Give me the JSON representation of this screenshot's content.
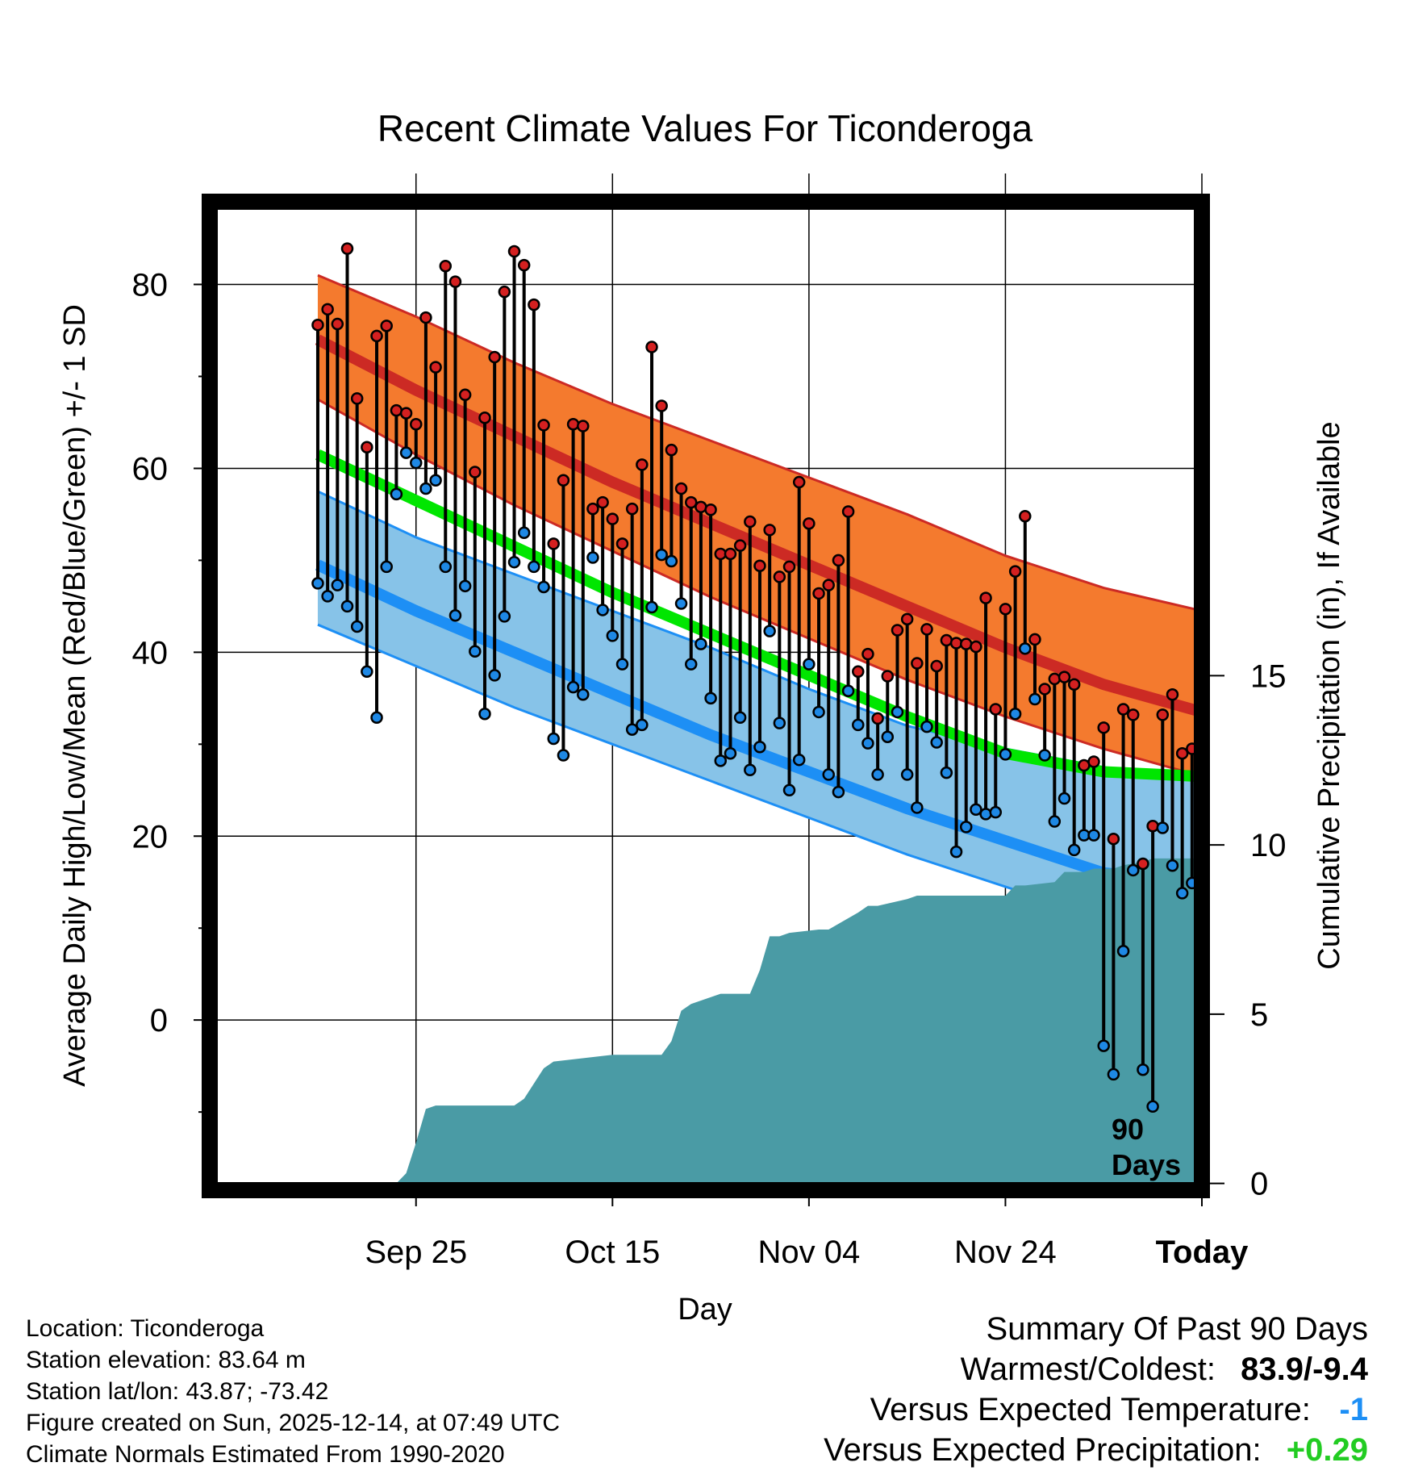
{
  "chart_data": {
    "type": "line",
    "title": "Recent Climate Values For Ticonderoga",
    "xlabel": "Day",
    "ylabel": "Average Daily High/Low/Mean (Red/Blue/Green) +/- 1 SD",
    "y2label": "Cumulative Precipitation (in), If Available",
    "xlim": [
      -11,
      90
    ],
    "ylim": [
      -18.5,
      89
    ],
    "y2lim": [
      -0.2,
      29
    ],
    "x_ticks": [
      {
        "x": 10,
        "label": "Sep 25"
      },
      {
        "x": 30,
        "label": "Oct 15"
      },
      {
        "x": 50,
        "label": "Nov 04"
      },
      {
        "x": 70,
        "label": "Nov 24"
      },
      {
        "x": 90,
        "label": "Today"
      }
    ],
    "y_ticks": [
      0,
      20,
      40,
      60,
      80
    ],
    "y_minor_ticks": [
      -10,
      10,
      30,
      50,
      70
    ],
    "y2_ticks": [
      0,
      5,
      10,
      15
    ],
    "today_x": 90,
    "today_label": "90",
    "days_label": "Days",
    "x_days": [
      0,
      10,
      20,
      30,
      40,
      50,
      60,
      70,
      80,
      90,
      99
    ],
    "normals": {
      "high_mean": [
        74,
        68.5,
        63.5,
        58.5,
        54,
        49.5,
        45,
        40.5,
        36.5,
        33.5,
        31
      ],
      "high_sd_up": [
        81,
        76.5,
        71.5,
        67,
        63,
        59,
        55,
        50.5,
        47,
        44.5,
        42.5
      ],
      "high_sd_dn": [
        67.5,
        61.5,
        56,
        51,
        46,
        41.5,
        37,
        33,
        29.5,
        26.5,
        22
      ],
      "mean": [
        61.5,
        56.5,
        51.5,
        46.5,
        42,
        37.5,
        33,
        29,
        27,
        26.5,
        24.5
      ],
      "low_mean": [
        49.5,
        44.5,
        40,
        35.5,
        31,
        27,
        23,
        19.5,
        16,
        15,
        15.5
      ],
      "low_sd_up": [
        57.5,
        52.5,
        48.5,
        44.5,
        40.5,
        36,
        32,
        29.5,
        27.5,
        26,
        27.5
      ],
      "low_sd_dn": [
        43,
        38.5,
        34,
        30,
        26,
        22,
        18,
        14.5,
        11,
        7,
        2.5
      ]
    },
    "daily": {
      "high": [
        75.6,
        77.3,
        75.7,
        83.9,
        67.6,
        62.3,
        74.4,
        75.5,
        66.3,
        66,
        64.8,
        76.4,
        71,
        82,
        80.3,
        68,
        59.6,
        65.5,
        72.1,
        79.2,
        83.6,
        82.1,
        77.8,
        64.7,
        51.8,
        58.7,
        64.8,
        64.6,
        55.6,
        56.3,
        54.5,
        51.8,
        55.6,
        60.4,
        73.2,
        66.8,
        62,
        57.8,
        56.3,
        55.8,
        55.5,
        50.7,
        50.7,
        51.6,
        54.2,
        49.4,
        53.3,
        48.2,
        49.3,
        58.5,
        54,
        46.4,
        47.3,
        50,
        55.3,
        37.9,
        39.8,
        32.8,
        37.4,
        42.4,
        43.6,
        38.8,
        42.5,
        38.5,
        41.3,
        41,
        40.9,
        40.6,
        45.9,
        33.8,
        44.7,
        48.8,
        54.8,
        41.4,
        36,
        37.1,
        37.3,
        36.5,
        27.7,
        28.1,
        31.8,
        19.7,
        33.8,
        33.2,
        17,
        21.1,
        33.2,
        35.4,
        29,
        29.5
      ],
      "low": [
        47.5,
        46.1,
        47.3,
        45,
        42.8,
        37.9,
        32.9,
        49.3,
        57.2,
        61.7,
        60.6,
        57.8,
        58.7,
        49.3,
        44,
        47.2,
        40.1,
        33.3,
        37.5,
        43.9,
        49.8,
        53,
        49.3,
        47.1,
        30.6,
        28.8,
        36.2,
        35.4,
        50.3,
        44.6,
        41.8,
        38.7,
        31.6,
        32.1,
        44.9,
        50.6,
        49.9,
        45.3,
        38.7,
        40.9,
        35,
        28.2,
        29,
        32.9,
        27.2,
        29.7,
        42.3,
        32.3,
        25,
        28.3,
        38.7,
        33.5,
        26.7,
        24.8,
        35.8,
        32.1,
        30.1,
        26.7,
        30.8,
        33.5,
        26.7,
        23.1,
        31.9,
        30.2,
        26.9,
        18.3,
        21,
        22.9,
        22.4,
        22.6,
        28.9,
        33.3,
        40.4,
        34.9,
        28.8,
        21.6,
        24.1,
        18.5,
        20.1,
        20.1,
        -2.8,
        -5.9,
        7.5,
        16.3,
        -5.4,
        -9.4,
        20.9,
        16.8,
        13.8,
        14.9
      ],
      "colors_note": "red dot = high, blue dot = low"
    },
    "precip_cumulative": {
      "x": [
        -1,
        8,
        9,
        10,
        11,
        12,
        20,
        21,
        23,
        24,
        30,
        35,
        36,
        37,
        38,
        41,
        44,
        45,
        46,
        47,
        48,
        51,
        52,
        55,
        56,
        57,
        60,
        61,
        63,
        64,
        70,
        71,
        72,
        75,
        76,
        78,
        79,
        81,
        82,
        84,
        85,
        89,
        90,
        92
      ],
      "values": [
        0,
        0,
        0.3,
        1.2,
        2.2,
        2.3,
        2.3,
        2.5,
        3.4,
        3.6,
        3.8,
        3.8,
        4.2,
        5.1,
        5.3,
        5.6,
        5.6,
        6.3,
        7.3,
        7.3,
        7.4,
        7.5,
        7.5,
        8,
        8.2,
        8.2,
        8.4,
        8.5,
        8.5,
        8.5,
        8.5,
        8.8,
        8.8,
        8.9,
        9.2,
        9.2,
        9.3,
        9.3,
        9.4,
        9.5,
        9.6,
        9.6,
        9.6,
        9.6
      ]
    },
    "colors": {
      "high_band": "#f47a2e",
      "high_line": "#cc2a24",
      "high_edge": "#cc2a24",
      "low_band": "#87c3e8",
      "low_line": "#1d8ff5",
      "low_edge": "#1d8ff5",
      "mean_line": "#00e600",
      "overlap": "#8d1313",
      "precip": "#4a9ba5",
      "high_dot": "#d42020",
      "low_dot": "#1e88e5"
    }
  },
  "info": {
    "location": "Location: Ticonderoga",
    "elevation": "Station elevation: 83.64 m",
    "latlon": "Station lat/lon: 43.87; -73.42",
    "created": "Figure created on Sun, 2025-12-14, at 07:49 UTC",
    "normals": "Climate Normals Estimated From 1990-2020"
  },
  "summary": {
    "title": "Summary Of Past 90 Days",
    "warmest_label": "Warmest/Coldest:",
    "warmest_value": "83.9/-9.4",
    "temp_label": "Versus Expected Temperature:",
    "temp_value": "-1",
    "temp_color": "#1d8ff5",
    "precip_label": "Versus Expected Precipitation:",
    "precip_value": "+0.29",
    "precip_color": "#22cc22"
  }
}
